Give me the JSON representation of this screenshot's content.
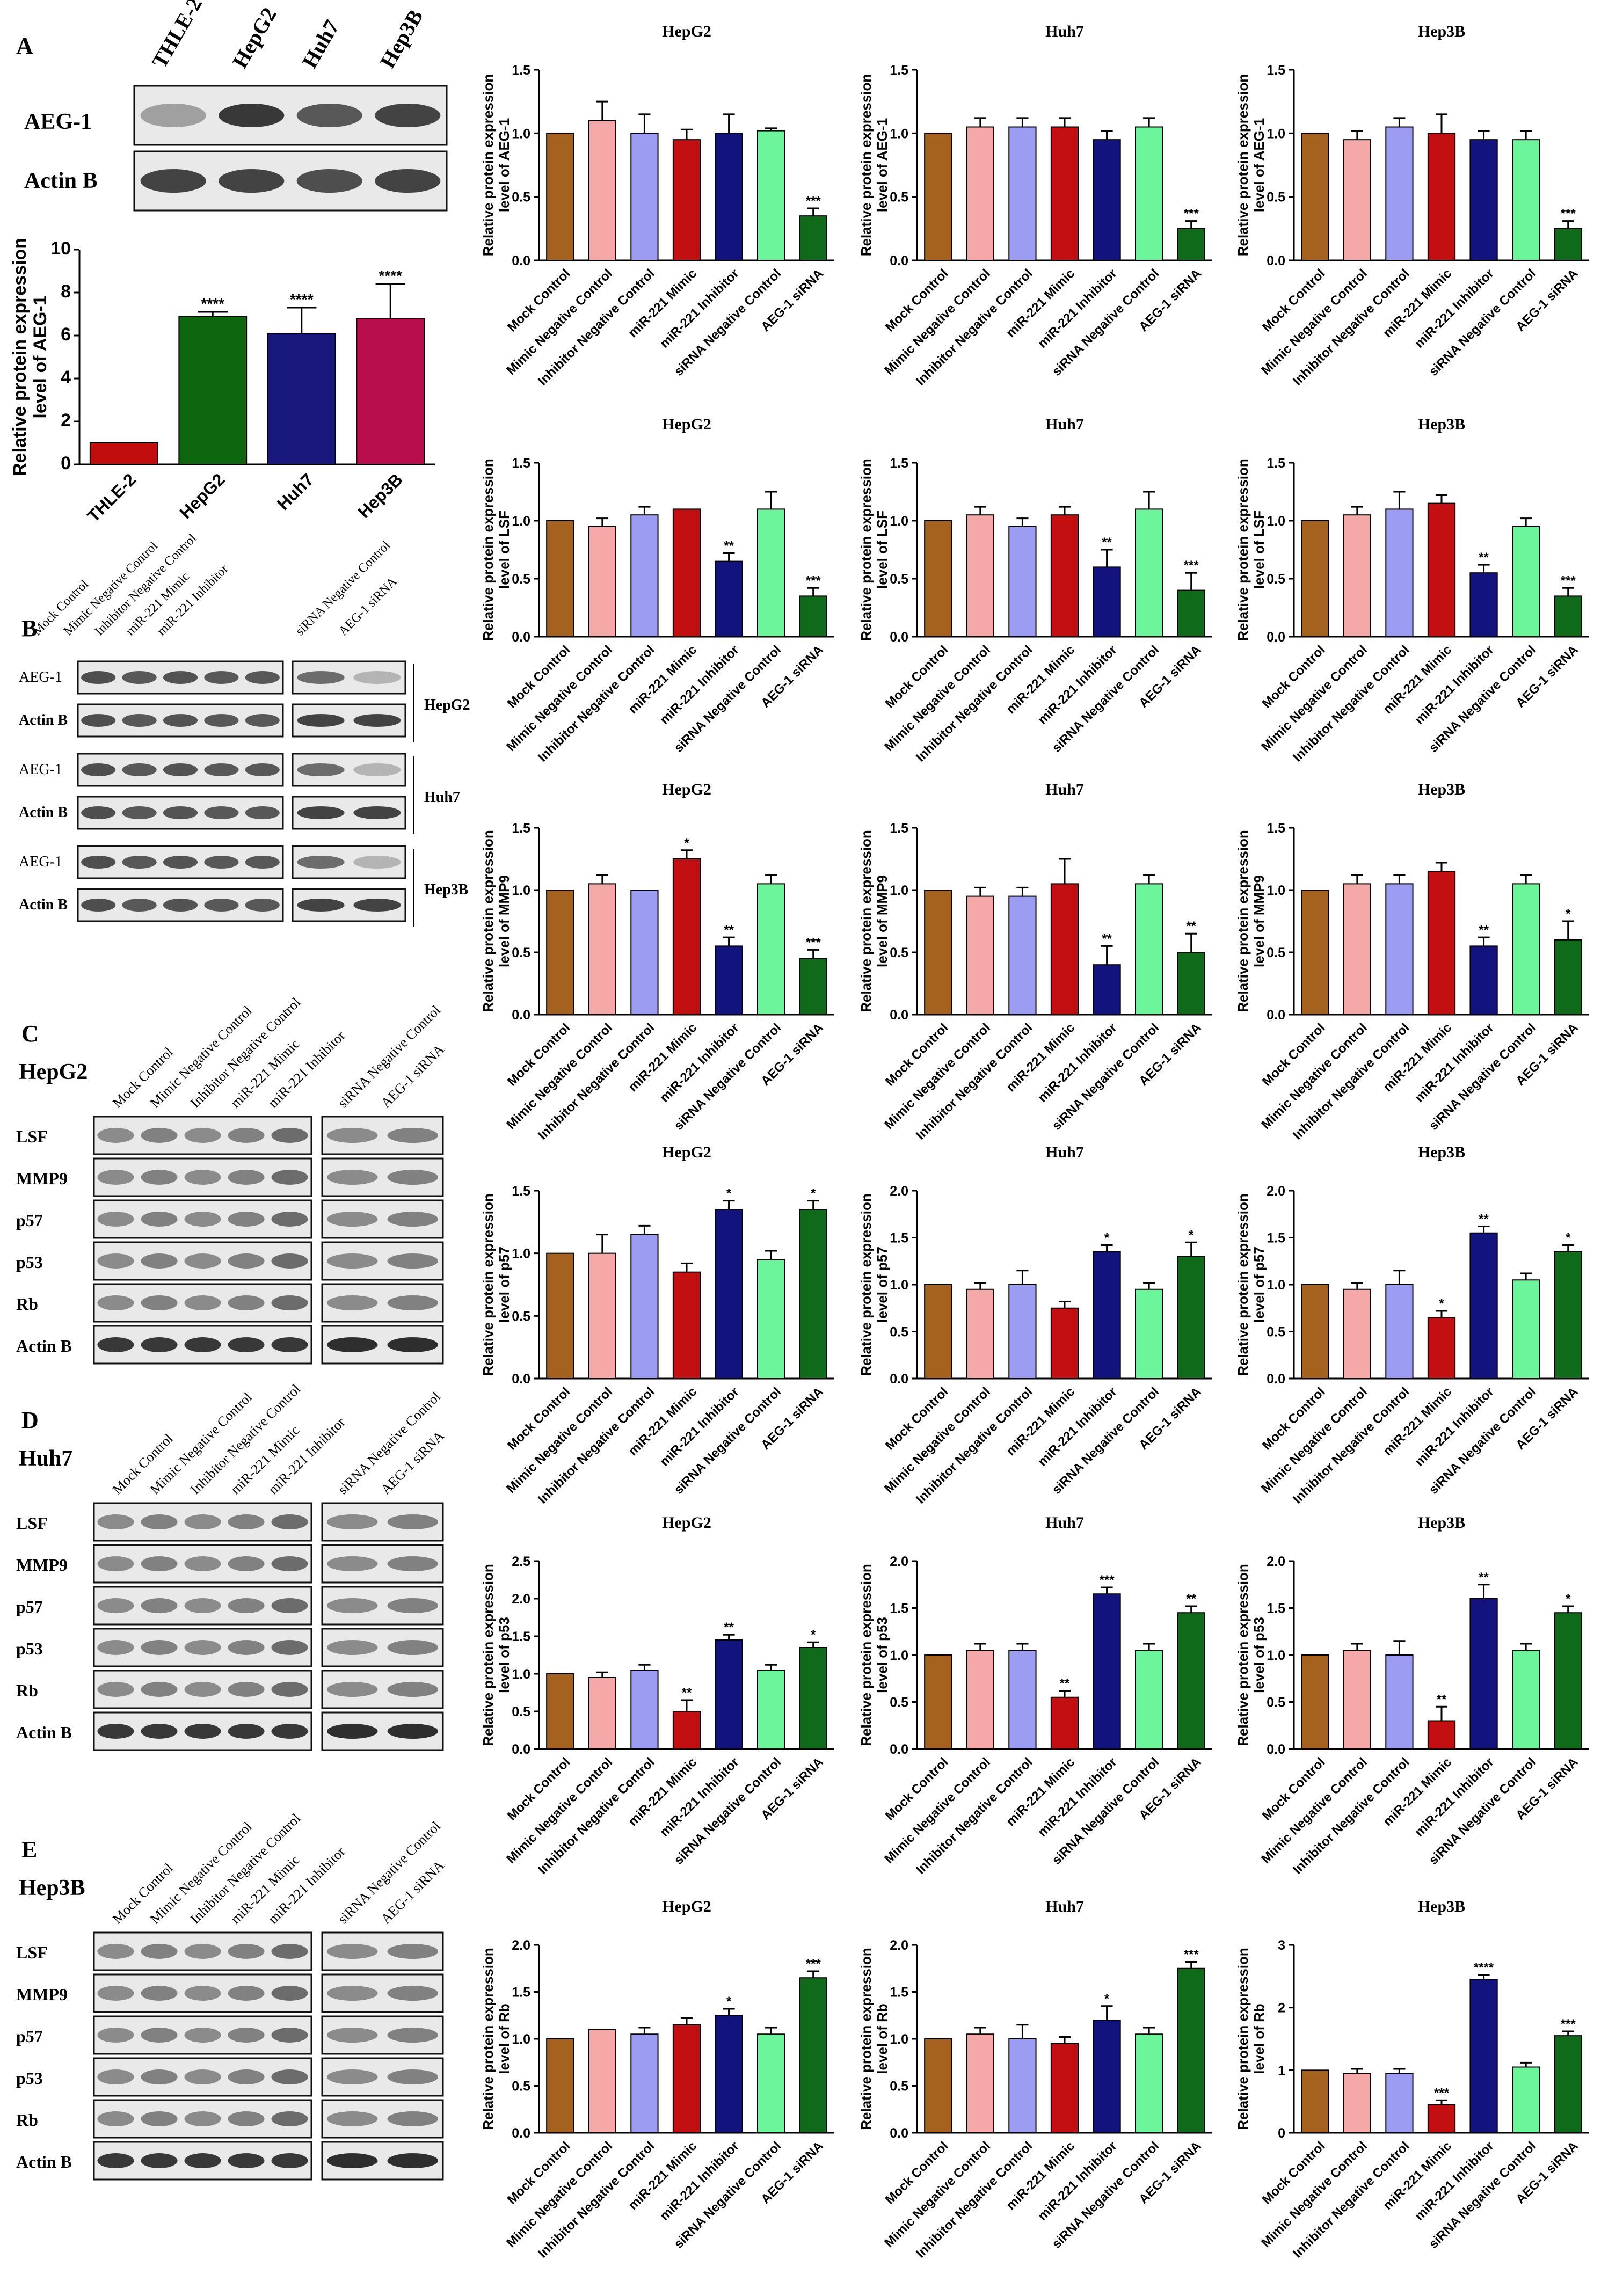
{
  "colors": {
    "mock": "#A5621E",
    "mimic_nc": "#F4A8A8",
    "inhibitor_nc": "#9C9CF2",
    "mimic": "#C30E12",
    "inhibitor": "#13137E",
    "sirna_nc": "#6DF59B",
    "sirna": "#0F6A1A",
    "thle2": "#C10D0D",
    "hepg2": "#0D650E",
    "huh7": "#17177C",
    "hep3b": "#B80E4B"
  },
  "panel_a": {
    "letter": "A",
    "blot_lanes": [
      "THLE-2",
      "HepG2",
      "Huh7",
      "Hep3B"
    ],
    "blot_rows": [
      "AEG-1",
      "Actin B"
    ]
  },
  "panel_b": {
    "letter": "B",
    "lanes": [
      "Mock Control",
      "Mimic Negative Control",
      "Inhibitor Negative Control",
      "miR-221 Mimic",
      "miR-221 Inhibitor",
      "siRNA Negative Control",
      "AEG-1 siRNA"
    ],
    "groups": [
      {
        "cell": "HepG2",
        "rows": [
          "AEG-1",
          "Actin B"
        ]
      },
      {
        "cell": "Huh7",
        "rows": [
          "AEG-1",
          "Actin B"
        ]
      },
      {
        "cell": "Hep3B",
        "rows": [
          "AEG-1",
          "Actin B"
        ]
      }
    ]
  },
  "panel_c": {
    "letter": "C",
    "cell": "HepG2",
    "lanes": [
      "Mock Control",
      "Mimic Negative Control",
      "Inhibitor Negative Control",
      "miR-221 Mimic",
      "miR-221 Inhibitor",
      "siRNA Negative Control",
      "AEG-1 siRNA"
    ],
    "rows": [
      "LSF",
      "MMP9",
      "p57",
      "p53",
      "Rb",
      "Actin B"
    ]
  },
  "panel_d": {
    "letter": "D",
    "cell": "Huh7",
    "lanes": [
      "Mock Control",
      "Mimic Negative Control",
      "Inhibitor Negative Control",
      "miR-221 Mimic",
      "miR-221 Inhibitor",
      "siRNA Negative Control",
      "AEG-1 siRNA"
    ],
    "rows": [
      "LSF",
      "MMP9",
      "p57",
      "p53",
      "Rb",
      "Actin B"
    ]
  },
  "panel_e": {
    "letter": "E",
    "cell": "Hep3B",
    "lanes": [
      "Mock Control",
      "Mimic Negative Control",
      "Inhibitor Negative Control",
      "miR-221 Mimic",
      "miR-221 Inhibitor",
      "siRNA Negative Control",
      "AEG-1 siRNA"
    ],
    "rows": [
      "LSF",
      "MMP9",
      "p57",
      "p53",
      "Rb",
      "Actin B"
    ]
  },
  "chart_data": [
    {
      "id": "a",
      "type": "bar",
      "title": "",
      "ylabel": "Relative protein expression level of AEG-1",
      "categories": [
        "THLE-2",
        "HepG2",
        "Huh7",
        "Hep3B"
      ],
      "values": [
        1.0,
        6.9,
        6.1,
        6.8
      ],
      "errors": [
        0,
        0.2,
        1.2,
        1.6
      ],
      "sig": [
        "",
        "****",
        "****",
        "****"
      ],
      "ylim": [
        0,
        10
      ],
      "yticks": [
        0,
        2,
        4,
        6,
        8,
        10
      ]
    },
    {
      "id": "aeg1_hepg2",
      "type": "bar",
      "title": "HepG2",
      "ylabel": "Relative protein expression level of AEG-1",
      "categories": [
        "Mock Control",
        "Mimic Negative Control",
        "Inhibitor Negative Control",
        "miR-221 Mimic",
        "miR-221 Inhibitor",
        "siRNA Negative Control",
        "AEG-1 siRNA"
      ],
      "values": [
        1.0,
        1.1,
        1.0,
        0.95,
        1.0,
        1.02,
        0.35
      ],
      "errors": [
        0,
        0.15,
        0.15,
        0.08,
        0.15,
        0.02,
        0.06
      ],
      "sig": [
        "",
        "",
        "",
        "",
        "",
        "",
        "***"
      ],
      "ylim": [
        0,
        1.5
      ],
      "yticks": [
        0.0,
        0.5,
        1.0,
        1.5
      ]
    },
    {
      "id": "aeg1_huh7",
      "type": "bar",
      "title": "Huh7",
      "ylabel": "Relative protein expression level of AEG-1",
      "categories": [
        "Mock Control",
        "Mimic Negative Control",
        "Inhibitor Negative Control",
        "miR-221 Mimic",
        "miR-221 Inhibitor",
        "siRNA Negative Control",
        "AEG-1 siRNA"
      ],
      "values": [
        1.0,
        1.05,
        1.05,
        1.05,
        0.95,
        1.05,
        0.25
      ],
      "errors": [
        0,
        0.07,
        0.07,
        0.07,
        0.07,
        0.07,
        0.06
      ],
      "sig": [
        "",
        "",
        "",
        "",
        "",
        "",
        "***"
      ],
      "ylim": [
        0,
        1.5
      ],
      "yticks": [
        0.0,
        0.5,
        1.0,
        1.5
      ]
    },
    {
      "id": "aeg1_hep3b",
      "type": "bar",
      "title": "Hep3B",
      "ylabel": "Relative protein expression level of AEG-1",
      "categories": [
        "Mock Control",
        "Mimic Negative Control",
        "Inhibitor Negative Control",
        "miR-221 Mimic",
        "miR-221 Inhibitor",
        "siRNA Negative Control",
        "AEG-1 siRNA"
      ],
      "values": [
        1.0,
        0.95,
        1.05,
        1.0,
        0.95,
        0.95,
        0.25
      ],
      "errors": [
        0,
        0.07,
        0.07,
        0.15,
        0.07,
        0.07,
        0.06
      ],
      "sig": [
        "",
        "",
        "",
        "",
        "",
        "",
        "***"
      ],
      "ylim": [
        0,
        1.5
      ],
      "yticks": [
        0.0,
        0.5,
        1.0,
        1.5
      ]
    },
    {
      "id": "lsf_hepg2",
      "type": "bar",
      "title": "HepG2",
      "ylabel": "Relative protein expression level of LSF",
      "categories": [
        "Mock Control",
        "Mimic Negative Control",
        "Inhibitor Negative Control",
        "miR-221 Mimic",
        "miR-221 Inhibitor",
        "siRNA Negative Control",
        "AEG-1 siRNA"
      ],
      "values": [
        1.0,
        0.95,
        1.05,
        1.1,
        0.65,
        1.1,
        0.35
      ],
      "errors": [
        0,
        0.07,
        0.07,
        0,
        0.07,
        0.15,
        0.07
      ],
      "sig": [
        "",
        "",
        "",
        "",
        "**",
        "",
        "***"
      ],
      "ylim": [
        0,
        1.5
      ],
      "yticks": [
        0.0,
        0.5,
        1.0,
        1.5
      ]
    },
    {
      "id": "lsf_huh7",
      "type": "bar",
      "title": "Huh7",
      "ylabel": "Relative protein expression level of LSF",
      "categories": [
        "Mock Control",
        "Mimic Negative Control",
        "Inhibitor Negative Control",
        "miR-221 Mimic",
        "miR-221 Inhibitor",
        "siRNA Negative Control",
        "AEG-1 siRNA"
      ],
      "values": [
        1.0,
        1.05,
        0.95,
        1.05,
        0.6,
        1.1,
        0.4
      ],
      "errors": [
        0,
        0.07,
        0.07,
        0.07,
        0.15,
        0.15,
        0.15
      ],
      "sig": [
        "",
        "",
        "",
        "",
        "**",
        "",
        "***"
      ],
      "ylim": [
        0,
        1.5
      ],
      "yticks": [
        0.0,
        0.5,
        1.0,
        1.5
      ]
    },
    {
      "id": "lsf_hep3b",
      "type": "bar",
      "title": "Hep3B",
      "ylabel": "Relative protein expression level of LSF",
      "categories": [
        "Mock Control",
        "Mimic Negative Control",
        "Inhibitor Negative Control",
        "miR-221 Mimic",
        "miR-221 Inhibitor",
        "siRNA Negative Control",
        "AEG-1 siRNA"
      ],
      "values": [
        1.0,
        1.05,
        1.1,
        1.15,
        0.55,
        0.95,
        0.35
      ],
      "errors": [
        0,
        0.07,
        0.15,
        0.07,
        0.07,
        0.07,
        0.07
      ],
      "sig": [
        "",
        "",
        "",
        "",
        "**",
        "",
        "***"
      ],
      "ylim": [
        0,
        1.5
      ],
      "yticks": [
        0.0,
        0.5,
        1.0,
        1.5
      ]
    },
    {
      "id": "mmp9_hepg2",
      "type": "bar",
      "title": "HepG2",
      "ylabel": "Relative protein expression level of MMP9",
      "categories": [
        "Mock Control",
        "Mimic Negative Control",
        "Inhibitor Negative Control",
        "miR-221 Mimic",
        "miR-221 Inhibitor",
        "siRNA Negative Control",
        "AEG-1 siRNA"
      ],
      "values": [
        1.0,
        1.05,
        1.0,
        1.25,
        0.55,
        1.05,
        0.45
      ],
      "errors": [
        0,
        0.07,
        0,
        0.07,
        0.07,
        0.07,
        0.07
      ],
      "sig": [
        "",
        "",
        "",
        "*",
        "**",
        "",
        "***"
      ],
      "ylim": [
        0,
        1.5
      ],
      "yticks": [
        0.0,
        0.5,
        1.0,
        1.5
      ]
    },
    {
      "id": "mmp9_huh7",
      "type": "bar",
      "title": "Huh7",
      "ylabel": "Relative protein expression level of MMP9",
      "categories": [
        "Mock Control",
        "Mimic Negative Control",
        "Inhibitor Negative Control",
        "miR-221 Mimic",
        "miR-221 Inhibitor",
        "siRNA Negative Control",
        "AEG-1 siRNA"
      ],
      "values": [
        1.0,
        0.95,
        0.95,
        1.05,
        0.4,
        1.05,
        0.5
      ],
      "errors": [
        0,
        0.07,
        0.07,
        0.2,
        0.15,
        0.07,
        0.15
      ],
      "sig": [
        "",
        "",
        "",
        "",
        "**",
        "",
        "**"
      ],
      "ylim": [
        0,
        1.5
      ],
      "yticks": [
        0.0,
        0.5,
        1.0,
        1.5
      ]
    },
    {
      "id": "mmp9_hep3b",
      "type": "bar",
      "title": "Hep3B",
      "ylabel": "Relative protein expression level of MMP9",
      "categories": [
        "Mock Control",
        "Mimic Negative Control",
        "Inhibitor Negative Control",
        "miR-221 Mimic",
        "miR-221 Inhibitor",
        "siRNA Negative Control",
        "AEG-1 siRNA"
      ],
      "values": [
        1.0,
        1.05,
        1.05,
        1.15,
        0.55,
        1.05,
        0.6
      ],
      "errors": [
        0,
        0.07,
        0.07,
        0.07,
        0.07,
        0.07,
        0.15
      ],
      "sig": [
        "",
        "",
        "",
        "",
        "**",
        "",
        "*"
      ],
      "ylim": [
        0,
        1.5
      ],
      "yticks": [
        0.0,
        0.5,
        1.0,
        1.5
      ]
    },
    {
      "id": "p57_hepg2",
      "type": "bar",
      "title": "HepG2",
      "ylabel": "Relative protein expression level of p57",
      "categories": [
        "Mock Control",
        "Mimic Negative Control",
        "Inhibitor Negative Control",
        "miR-221 Mimic",
        "miR-221 Inhibitor",
        "siRNA Negative Control",
        "AEG-1 siRNA"
      ],
      "values": [
        1.0,
        1.0,
        1.15,
        0.85,
        1.35,
        0.95,
        1.35
      ],
      "errors": [
        0,
        0.15,
        0.07,
        0.07,
        0.07,
        0.07,
        0.07
      ],
      "sig": [
        "",
        "",
        "",
        "",
        "*",
        "",
        "*"
      ],
      "ylim": [
        0,
        1.5
      ],
      "yticks": [
        0.0,
        0.5,
        1.0,
        1.5
      ]
    },
    {
      "id": "p57_huh7",
      "type": "bar",
      "title": "Huh7",
      "ylabel": "Relative protein expression level of p57",
      "categories": [
        "Mock Control",
        "Mimic Negative Control",
        "Inhibitor Negative Control",
        "miR-221 Mimic",
        "miR-221 Inhibitor",
        "siRNA Negative Control",
        "AEG-1 siRNA"
      ],
      "values": [
        1.0,
        0.95,
        1.0,
        0.75,
        1.35,
        0.95,
        1.3
      ],
      "errors": [
        0,
        0.07,
        0.15,
        0.07,
        0.07,
        0.07,
        0.15
      ],
      "sig": [
        "",
        "",
        "",
        "",
        "*",
        "",
        "*"
      ],
      "ylim": [
        0,
        2.0
      ],
      "yticks": [
        0.0,
        0.5,
        1.0,
        1.5,
        2.0
      ]
    },
    {
      "id": "p57_hep3b",
      "type": "bar",
      "title": "Hep3B",
      "ylabel": "Relative protein expression level of p57",
      "categories": [
        "Mock Control",
        "Mimic Negative Control",
        "Inhibitor Negative Control",
        "miR-221 Mimic",
        "miR-221 Inhibitor",
        "siRNA Negative Control",
        "AEG-1 siRNA"
      ],
      "values": [
        1.0,
        0.95,
        1.0,
        0.65,
        1.55,
        1.05,
        1.35
      ],
      "errors": [
        0,
        0.07,
        0.15,
        0.07,
        0.07,
        0.07,
        0.07
      ],
      "sig": [
        "",
        "",
        "",
        "*",
        "**",
        "",
        "*"
      ],
      "ylim": [
        0,
        2.0
      ],
      "yticks": [
        0.0,
        0.5,
        1.0,
        1.5,
        2.0
      ]
    },
    {
      "id": "p53_hepg2",
      "type": "bar",
      "title": "HepG2",
      "ylabel": "Relative protein expression level of p53",
      "categories": [
        "Mock Control",
        "Mimic Negative Control",
        "Inhibitor Negative Control",
        "miR-221 Mimic",
        "miR-221 Inhibitor",
        "siRNA Negative Control",
        "AEG-1 siRNA"
      ],
      "values": [
        1.0,
        0.95,
        1.05,
        0.5,
        1.45,
        1.05,
        1.35
      ],
      "errors": [
        0,
        0.07,
        0.07,
        0.15,
        0.07,
        0.07,
        0.07
      ],
      "sig": [
        "",
        "",
        "",
        "**",
        "**",
        "",
        "*"
      ],
      "ylim": [
        0,
        2.5
      ],
      "yticks": [
        0.0,
        0.5,
        1.0,
        1.5,
        2.0,
        2.5
      ]
    },
    {
      "id": "p53_huh7",
      "type": "bar",
      "title": "Huh7",
      "ylabel": "Relative protein expression level of p53",
      "categories": [
        "Mock Control",
        "Mimic Negative Control",
        "Inhibitor Negative Control",
        "miR-221 Mimic",
        "miR-221 Inhibitor",
        "siRNA Negative Control",
        "AEG-1 siRNA"
      ],
      "values": [
        1.0,
        1.05,
        1.05,
        0.55,
        1.65,
        1.05,
        1.45
      ],
      "errors": [
        0,
        0.07,
        0.07,
        0.07,
        0.07,
        0.07,
        0.07
      ],
      "sig": [
        "",
        "",
        "",
        "**",
        "***",
        "",
        "**"
      ],
      "ylim": [
        0,
        2.0
      ],
      "yticks": [
        0.0,
        0.5,
        1.0,
        1.5,
        2.0
      ]
    },
    {
      "id": "p53_hep3b",
      "type": "bar",
      "title": "Hep3B",
      "ylabel": "Relative protein expression level of p53",
      "categories": [
        "Mock Control",
        "Mimic Negative Control",
        "Inhibitor Negative Control",
        "miR-221 Mimic",
        "miR-221 Inhibitor",
        "siRNA Negative Control",
        "AEG-1 siRNA"
      ],
      "values": [
        1.0,
        1.05,
        1.0,
        0.3,
        1.6,
        1.05,
        1.45
      ],
      "errors": [
        0,
        0.07,
        0.15,
        0.15,
        0.15,
        0.07,
        0.07
      ],
      "sig": [
        "",
        "",
        "",
        "**",
        "**",
        "",
        "*"
      ],
      "ylim": [
        0,
        2.0
      ],
      "yticks": [
        0.0,
        0.5,
        1.0,
        1.5,
        2.0
      ]
    },
    {
      "id": "rb_hepg2",
      "type": "bar",
      "title": "HepG2",
      "ylabel": "Relative protein expression level of Rb",
      "categories": [
        "Mock Control",
        "Mimic Negative Control",
        "Inhibitor Negative Control",
        "miR-221 Mimic",
        "miR-221 Inhibitor",
        "siRNA Negative Control",
        "AEG-1 siRNA"
      ],
      "values": [
        1.0,
        1.1,
        1.05,
        1.15,
        1.25,
        1.05,
        1.65
      ],
      "errors": [
        0,
        0,
        0.07,
        0.07,
        0.07,
        0.07,
        0.07
      ],
      "sig": [
        "",
        "",
        "",
        "",
        "*",
        "",
        "***"
      ],
      "ylim": [
        0,
        2.0
      ],
      "yticks": [
        0.0,
        0.5,
        1.0,
        1.5,
        2.0
      ]
    },
    {
      "id": "rb_huh7",
      "type": "bar",
      "title": "Huh7",
      "ylabel": "Relative protein expression level of Rb",
      "categories": [
        "Mock Control",
        "Mimic Negative Control",
        "Inhibitor Negative Control",
        "miR-221 Mimic",
        "miR-221 Inhibitor",
        "siRNA Negative Control",
        "AEG-1 siRNA"
      ],
      "values": [
        1.0,
        1.05,
        1.0,
        0.95,
        1.2,
        1.05,
        1.75
      ],
      "errors": [
        0,
        0.07,
        0.15,
        0.07,
        0.15,
        0.07,
        0.07
      ],
      "sig": [
        "",
        "",
        "",
        "",
        "*",
        "",
        "***"
      ],
      "ylim": [
        0,
        2.0
      ],
      "yticks": [
        0.0,
        0.5,
        1.0,
        1.5,
        2.0
      ]
    },
    {
      "id": "rb_hep3b",
      "type": "bar",
      "title": "Hep3B",
      "ylabel": "Relative protein expression level of Rb",
      "categories": [
        "Mock Control",
        "Mimic Negative Control",
        "Inhibitor Negative Control",
        "miR-221 Mimic",
        "miR-221 Inhibitor",
        "siRNA Negative Control",
        "AEG-1 siRNA"
      ],
      "values": [
        1.0,
        0.95,
        0.95,
        0.45,
        2.45,
        1.05,
        1.55
      ],
      "errors": [
        0,
        0.07,
        0.07,
        0.07,
        0.07,
        0.07,
        0.07
      ],
      "sig": [
        "",
        "",
        "",
        "***",
        "****",
        "",
        "***"
      ],
      "ylim": [
        0,
        3
      ],
      "yticks": [
        0,
        1,
        2,
        3
      ]
    }
  ]
}
